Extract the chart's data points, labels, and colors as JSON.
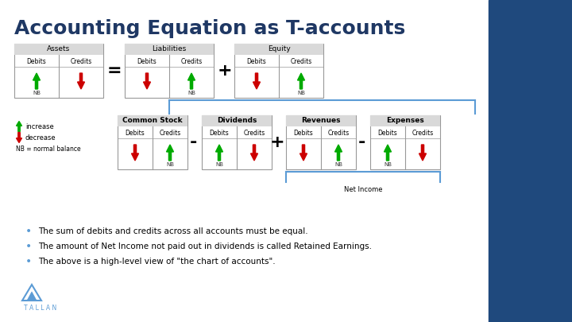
{
  "title": "Accounting Equation as T-accounts",
  "title_color": "#1F3864",
  "bg_color": "#FFFFFF",
  "right_panel_color": "#1F497D",
  "bullet_points": [
    "The sum of debits and credits across all accounts must be equal.",
    "The amount of Net Income not paid out in dividends is called Retained Earnings.",
    "The above is a high-level view of \"the chart of accounts\"."
  ],
  "green_arrow": "#00AA00",
  "red_arrow": "#CC0000",
  "header_bg": "#D9D9D9",
  "table_border": "#999999",
  "text_dark": "#000000",
  "nb_text": "#333333",
  "operator_color": "#000000",
  "brace_color": "#5B9BD5",
  "tallan_color": "#5B9BD5"
}
